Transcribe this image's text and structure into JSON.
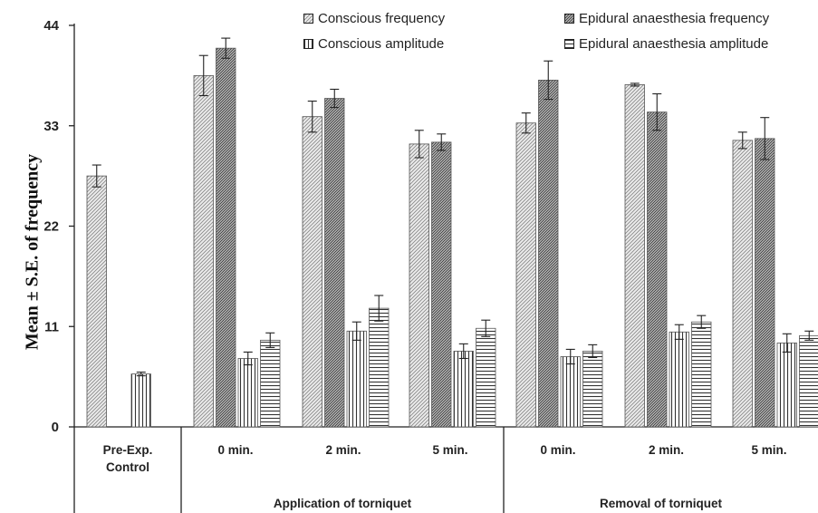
{
  "chart_data": {
    "type": "bar",
    "ylabel": "Mean ± S.E. of frequency",
    "ylim": [
      0,
      44
    ],
    "yticks": [
      0,
      11,
      22,
      33,
      44
    ],
    "groups": [
      {
        "label": "Pre-Exp.\nControl",
        "section": "",
        "values": [
          27.5,
          null,
          5.8,
          null
        ],
        "errors": [
          1.2,
          null,
          0.2,
          null
        ]
      },
      {
        "label": "0 min.",
        "section": "Application of torniquet",
        "values": [
          38.5,
          41.5,
          7.5,
          9.5
        ],
        "errors": [
          2.2,
          1.1,
          0.7,
          0.8
        ]
      },
      {
        "label": "2 min.",
        "section": "Application of torniquet",
        "values": [
          34.0,
          36.0,
          10.5,
          13.0
        ],
        "errors": [
          1.7,
          1.0,
          1.0,
          1.4
        ]
      },
      {
        "label": "5 min.",
        "section": "Application of torniquet",
        "values": [
          31.0,
          31.2,
          8.3,
          10.8
        ],
        "errors": [
          1.5,
          0.9,
          0.8,
          0.9
        ]
      },
      {
        "label": "0 min.",
        "section": "Removal of torniquet",
        "values": [
          33.3,
          38.0,
          7.7,
          8.3
        ],
        "errors": [
          1.1,
          2.1,
          0.8,
          0.7
        ]
      },
      {
        "label": "2 min.",
        "section": "Removal of torniquet",
        "values": [
          37.5,
          34.5,
          10.4,
          11.5
        ],
        "errors": [
          0.15,
          2.0,
          0.8,
          0.7
        ]
      },
      {
        "label": "5 min.",
        "section": "Removal of torniquet",
        "values": [
          31.4,
          31.6,
          9.2,
          10.0
        ],
        "errors": [
          0.9,
          2.3,
          1.0,
          0.5
        ]
      }
    ],
    "series": [
      {
        "name": "Conscious frequency",
        "pattern": "diag-light"
      },
      {
        "name": "Epidural anaesthesia frequency",
        "pattern": "diag-dark"
      },
      {
        "name": "Conscious amplitude",
        "pattern": "vertical"
      },
      {
        "name": "Epidural anaesthesia amplitude",
        "pattern": "horizontal"
      }
    ],
    "sections": [
      "Application of torniquet",
      "Removal of torniquet"
    ],
    "legend_position": "top",
    "grid": false
  }
}
